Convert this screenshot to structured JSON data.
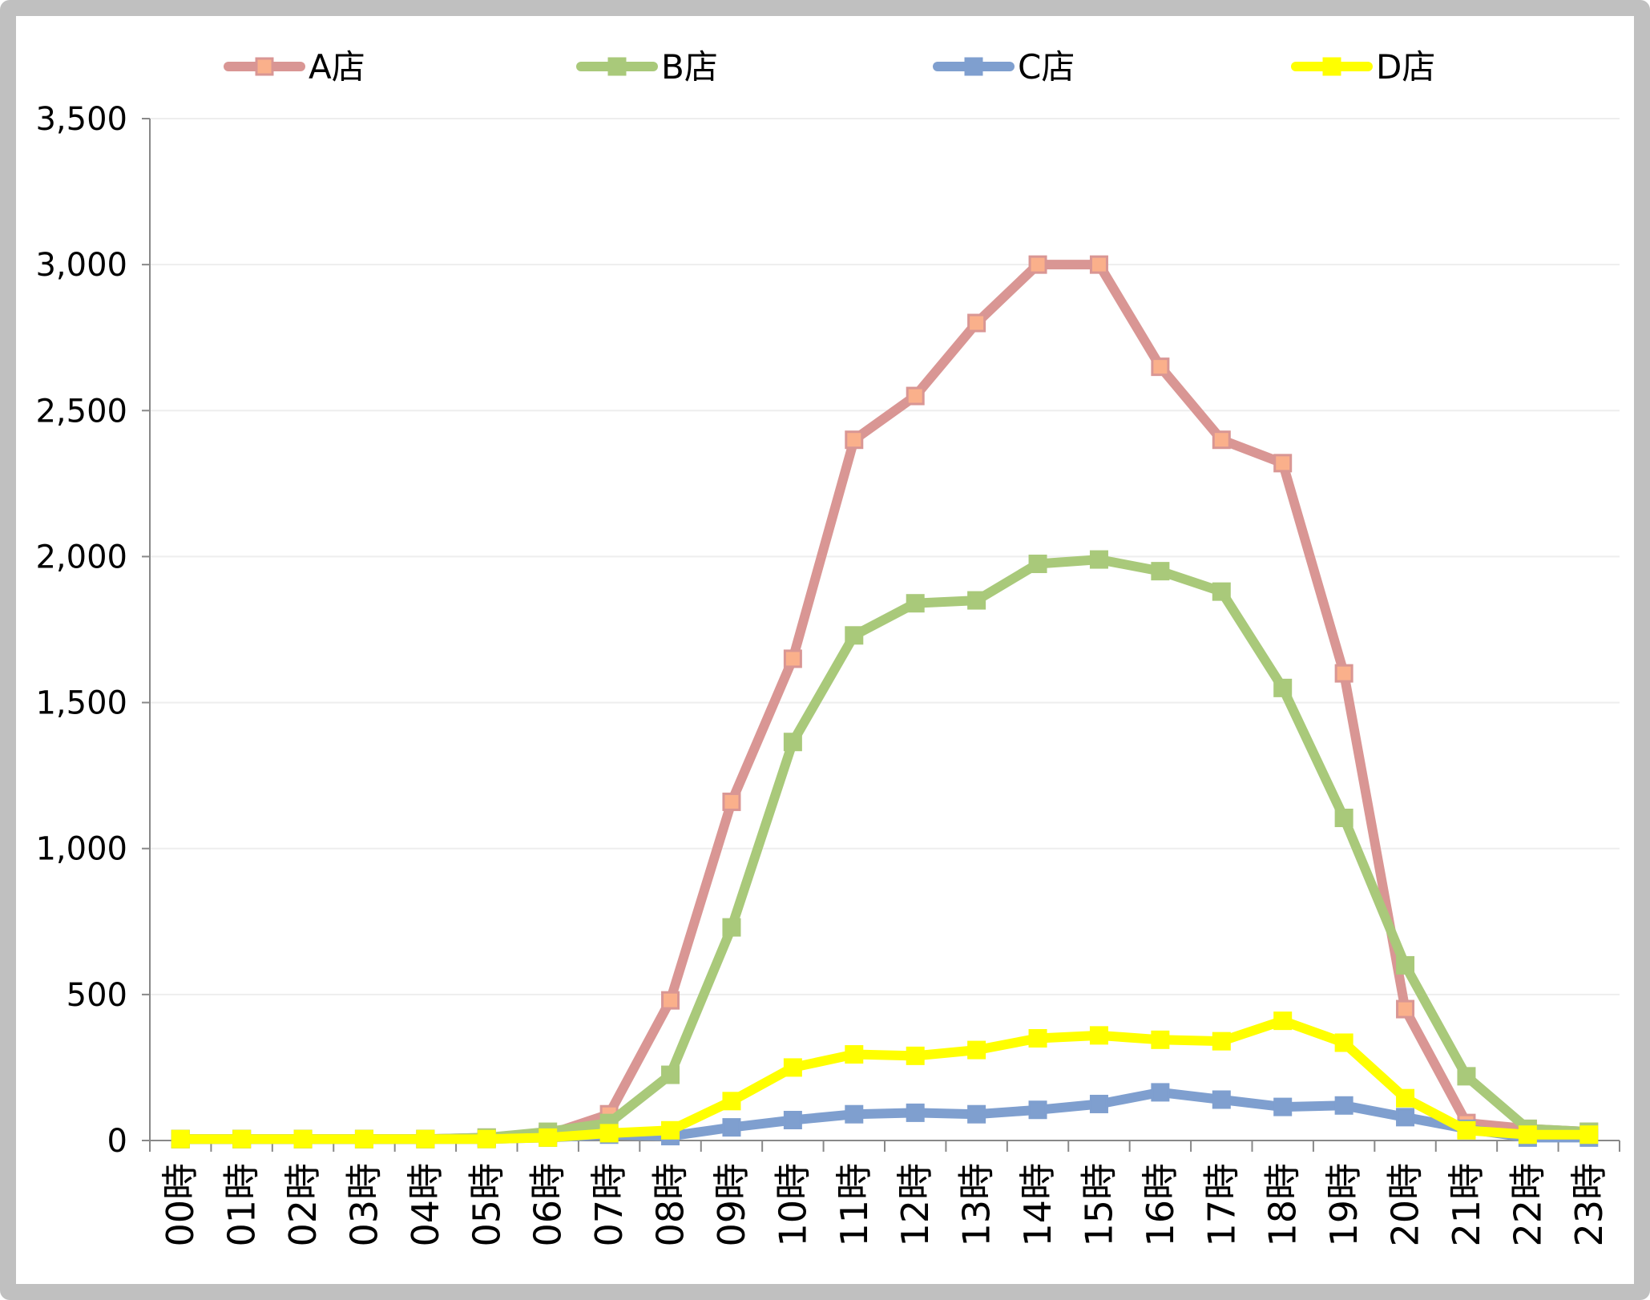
{
  "chart_data": {
    "type": "line",
    "categories": [
      "00時",
      "01時",
      "02時",
      "03時",
      "04時",
      "05時",
      "06時",
      "07時",
      "08時",
      "09時",
      "10時",
      "11時",
      "12時",
      "13時",
      "14時",
      "15時",
      "16時",
      "17時",
      "18時",
      "19時",
      "20時",
      "21時",
      "22時",
      "23時"
    ],
    "y_ticks": [
      "0",
      "500",
      "1,000",
      "1,500",
      "2,000",
      "2,500",
      "3,000",
      "3,500"
    ],
    "ylim": [
      0,
      3500
    ],
    "grid": true,
    "legend_position": "top",
    "series": [
      {
        "name": "A店",
        "line_color": "#d99694",
        "marker_color": "#fab08b",
        "values": [
          5,
          5,
          5,
          5,
          5,
          10,
          20,
          90,
          480,
          1160,
          1650,
          2400,
          2550,
          2800,
          3000,
          3000,
          2650,
          2400,
          2320,
          1600,
          450,
          60,
          40,
          30
        ]
      },
      {
        "name": "B店",
        "line_color": "#a9c97a",
        "marker_color": "#a9c97a",
        "values": [
          5,
          5,
          5,
          5,
          5,
          10,
          30,
          60,
          225,
          730,
          1365,
          1730,
          1840,
          1850,
          1975,
          1990,
          1950,
          1880,
          1550,
          1105,
          600,
          220,
          40,
          30
        ]
      },
      {
        "name": "C店",
        "line_color": "#7f9fcf",
        "marker_color": "#7f9fcf",
        "values": [
          5,
          5,
          5,
          5,
          5,
          5,
          10,
          20,
          15,
          45,
          70,
          90,
          95,
          90,
          105,
          125,
          165,
          140,
          115,
          120,
          80,
          40,
          10,
          10
        ]
      },
      {
        "name": "D店",
        "line_color": "#ffff00",
        "marker_color": "#ffff00",
        "values": [
          5,
          5,
          5,
          5,
          5,
          5,
          10,
          25,
          35,
          135,
          250,
          295,
          290,
          310,
          350,
          360,
          345,
          340,
          410,
          335,
          145,
          35,
          20,
          20
        ]
      }
    ]
  }
}
